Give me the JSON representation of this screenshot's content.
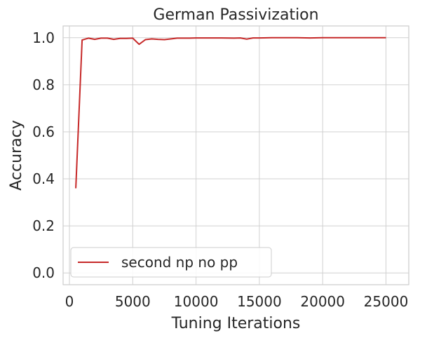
{
  "chart_data": {
    "type": "line",
    "title": "German Passivization",
    "xlabel": "Tuning Iterations",
    "ylabel": "Accuracy",
    "xlim": [
      -500,
      26800
    ],
    "ylim": [
      -0.05,
      1.05
    ],
    "xticks": [
      0,
      5000,
      10000,
      15000,
      20000,
      25000
    ],
    "xtick_labels": [
      "0",
      "5000",
      "10000",
      "15000",
      "20000",
      "25000"
    ],
    "yticks": [
      0.0,
      0.2,
      0.4,
      0.6,
      0.8,
      1.0
    ],
    "ytick_labels": [
      "0.0",
      "0.2",
      "0.4",
      "0.6",
      "0.8",
      "1.0"
    ],
    "grid": true,
    "legend_position": "lower-left",
    "series": [
      {
        "name": "second np no pp",
        "color": "#c62828",
        "x": [
          500,
          1000,
          1500,
          2000,
          2500,
          3000,
          3500,
          4000,
          4500,
          5000,
          5500,
          6000,
          6500,
          7000,
          7500,
          8000,
          8500,
          9000,
          9500,
          10000,
          11000,
          12000,
          13000,
          13500,
          14000,
          14500,
          15000,
          16000,
          17000,
          18000,
          19000,
          20000,
          21000,
          22000,
          23000,
          24000,
          25000
        ],
        "y": [
          0.36,
          0.99,
          0.998,
          0.993,
          0.998,
          0.998,
          0.993,
          0.997,
          0.997,
          0.998,
          0.972,
          0.992,
          0.995,
          0.993,
          0.992,
          0.995,
          0.998,
          0.998,
          0.998,
          0.999,
          0.999,
          0.999,
          0.998,
          0.999,
          0.994,
          0.999,
          0.999,
          1.0,
          1.0,
          1.0,
          0.999,
          1.0,
          1.0,
          1.0,
          1.0,
          1.0,
          1.0
        ]
      }
    ]
  }
}
